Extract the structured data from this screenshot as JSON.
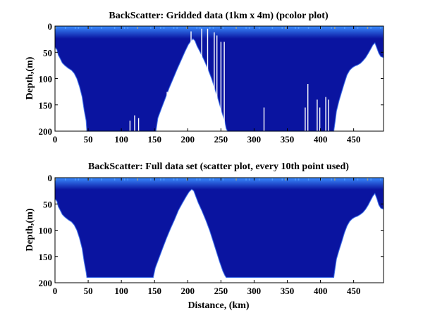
{
  "chart_data": [
    {
      "type": "heatmap",
      "title": "BackScatter: Gridded data (1km x 4m) (pcolor plot)",
      "xlabel": "",
      "ylabel": "Depth,(m)",
      "xlim": [
        0,
        495
      ],
      "ylim": [
        0,
        200
      ],
      "y_reversed": true,
      "x_ticks": [
        "0",
        "50",
        "100",
        "150",
        "200",
        "250",
        "300",
        "350",
        "400",
        "450"
      ],
      "y_ticks": [
        "0",
        "50",
        "100",
        "150",
        "200"
      ],
      "grid": false,
      "background_color": "#ffffff",
      "fill_color": "#0a14a0",
      "surface_color": "#3a8cff",
      "bottom_depth": {
        "distance_km": [
          0,
          3,
          5,
          8,
          11,
          15,
          20,
          25,
          29,
          33,
          37,
          41,
          44,
          47,
          48,
          152,
          155,
          160,
          166,
          172,
          178,
          184,
          190,
          196,
          201,
          205,
          208,
          211,
          214,
          219,
          224,
          230,
          236,
          241,
          246,
          251,
          256,
          258,
          260,
          262,
          264,
          420,
          422,
          424,
          428,
          432,
          436,
          440,
          444,
          448,
          452,
          456,
          460,
          464,
          468,
          472,
          476,
          479,
          482,
          485,
          488,
          491,
          495
        ],
        "depth_m": [
          40,
          45,
          55,
          62,
          70,
          75,
          80,
          84,
          90,
          100,
          115,
          135,
          160,
          180,
          200,
          200,
          175,
          158,
          138,
          118,
          100,
          82,
          65,
          48,
          35,
          28,
          24,
          28,
          38,
          50,
          63,
          80,
          100,
          120,
          140,
          162,
          182,
          195,
          200,
          200,
          200,
          200,
          182,
          162,
          142,
          125,
          108,
          93,
          84,
          79,
          76,
          74,
          71,
          66,
          60,
          52,
          43,
          36,
          32,
          42,
          52,
          58,
          60
        ]
      },
      "gaps": [
        {
          "x": 113,
          "from": 180,
          "to": 200
        },
        {
          "x": 120,
          "from": 170,
          "to": 200
        },
        {
          "x": 126,
          "from": 175,
          "to": 200
        },
        {
          "x": 169,
          "from": 125,
          "to": 200
        },
        {
          "x": 186,
          "from": 98,
          "to": 200
        },
        {
          "x": 192,
          "from": 88,
          "to": 200
        },
        {
          "x": 205,
          "from": 10,
          "to": 60
        },
        {
          "x": 221,
          "from": 5,
          "to": 75
        },
        {
          "x": 230,
          "from": 5,
          "to": 200
        },
        {
          "x": 240,
          "from": 12,
          "to": 200
        },
        {
          "x": 244,
          "from": 18,
          "to": 200
        },
        {
          "x": 250,
          "from": 30,
          "to": 200
        },
        {
          "x": 255,
          "from": 30,
          "to": 200
        },
        {
          "x": 315,
          "from": 155,
          "to": 200
        },
        {
          "x": 377,
          "from": 155,
          "to": 200
        },
        {
          "x": 381,
          "from": 110,
          "to": 200
        },
        {
          "x": 395,
          "from": 140,
          "to": 200
        },
        {
          "x": 399,
          "from": 155,
          "to": 200
        },
        {
          "x": 408,
          "from": 135,
          "to": 200
        },
        {
          "x": 412,
          "from": 140,
          "to": 200
        }
      ]
    },
    {
      "type": "scatter",
      "title": "BackScatter: Full data set (scatter plot, every 10th point used)",
      "xlabel": "Distance, (km)",
      "ylabel": "Depth,(m)",
      "xlim": [
        0,
        495
      ],
      "ylim": [
        0,
        200
      ],
      "y_reversed": true,
      "x_ticks": [
        "0",
        "50",
        "100",
        "150",
        "200",
        "250",
        "300",
        "350",
        "400",
        "450"
      ],
      "y_ticks": [
        "0",
        "50",
        "100",
        "150",
        "200"
      ],
      "grid": false,
      "background_color": "#ffffff",
      "fill_color": "#0a14a0",
      "surface_color": "#3a8cff",
      "bottom_depth": {
        "distance_km": [
          0,
          3,
          5,
          8,
          11,
          15,
          20,
          25,
          29,
          33,
          37,
          41,
          44,
          47,
          48,
          148,
          151,
          156,
          162,
          168,
          174,
          180,
          186,
          192,
          198,
          202,
          206,
          209,
          212,
          216,
          221,
          227,
          233,
          238,
          243,
          248,
          253,
          256,
          258,
          260,
          264,
          420,
          422,
          424,
          428,
          432,
          436,
          440,
          444,
          448,
          452,
          456,
          460,
          464,
          468,
          472,
          476,
          479,
          482,
          485,
          488,
          491,
          495
        ],
        "depth_m": [
          40,
          45,
          55,
          62,
          70,
          75,
          80,
          84,
          90,
          100,
          115,
          135,
          160,
          180,
          190,
          190,
          172,
          155,
          135,
          115,
          97,
          80,
          62,
          48,
          35,
          27,
          22,
          25,
          35,
          48,
          62,
          80,
          100,
          120,
          140,
          160,
          178,
          186,
          190,
          190,
          190,
          190,
          172,
          155,
          138,
          122,
          105,
          92,
          83,
          78,
          75,
          73,
          70,
          66,
          60,
          52,
          42,
          35,
          30,
          40,
          52,
          58,
          60
        ]
      },
      "gaps": []
    }
  ]
}
